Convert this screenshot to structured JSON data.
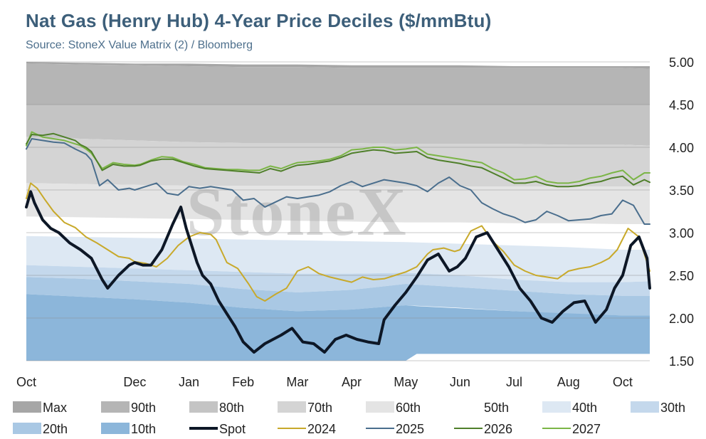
{
  "title": "Nat Gas (Henry Hub) 4-Year Price Deciles ($/mmBtu)",
  "subtitle": "Source: StoneX Value Matrix (2) / Bloomberg",
  "watermark": "StoneX",
  "chart_data": {
    "type": "area",
    "y_ticks": [
      "5.00",
      "4.50",
      "4.00",
      "3.50",
      "3.00",
      "2.50",
      "2.00",
      "1.50"
    ],
    "ylim": [
      1.5,
      5.0
    ],
    "y_axis_position": "right",
    "grid": true,
    "x_tick_labels": [
      "Oct",
      "Dec",
      "Jan",
      "Feb",
      "Mar",
      "Apr",
      "May",
      "Jun",
      "Jul",
      "Aug",
      "Oct"
    ],
    "x_tick_positions": [
      0,
      2,
      3,
      4,
      5,
      6,
      7,
      8,
      9,
      10,
      11
    ],
    "x_domain": [
      0,
      11.5
    ],
    "legend_position": "bottom",
    "legend": [
      "Max",
      "90th",
      "80th",
      "70th",
      "60th",
      "50th",
      "40th",
      "30th",
      "20th",
      "10th",
      "Spot",
      "2024",
      "2025",
      "2026",
      "2027"
    ],
    "colors": {
      "Max": "#a6a6a6",
      "90th": "#b5b5b5",
      "80th": "#c4c4c4",
      "70th": "#d4d4d4",
      "60th": "#e4e4e4",
      "50th": "#ffffff",
      "40th": "#dde8f3",
      "30th": "#c4d8ec",
      "20th": "#a9c8e4",
      "10th": "#8cb6da",
      "Spot": "#0d1726",
      "2024": "#c8a92a",
      "2025": "#4a6e8d",
      "2026": "#4f7f2a",
      "2027": "#7bb546"
    },
    "bands": [
      {
        "name": "Max",
        "x": [
          0,
          1,
          2,
          3,
          4,
          5,
          6,
          7,
          8,
          9,
          10,
          11,
          11.5
        ],
        "upper": [
          5.0,
          4.99,
          4.98,
          4.98,
          4.97,
          4.97,
          4.96,
          4.96,
          4.96,
          4.95,
          4.95,
          4.95,
          4.95
        ],
        "lower": [
          4.98,
          4.97,
          4.96,
          4.95,
          4.94,
          4.94,
          4.93,
          4.93,
          4.93,
          4.93,
          4.93,
          4.93,
          4.92
        ]
      },
      {
        "name": "90th",
        "x": [
          0,
          1,
          2,
          3,
          4,
          5,
          6,
          7,
          8,
          9,
          10,
          11,
          11.5
        ],
        "upper": [
          4.98,
          4.97,
          4.96,
          4.95,
          4.94,
          4.94,
          4.93,
          4.93,
          4.93,
          4.93,
          4.93,
          4.93,
          4.92
        ],
        "lower": [
          4.5,
          4.5,
          4.5,
          4.5,
          4.5,
          4.5,
          4.5,
          4.5,
          4.5,
          4.5,
          4.5,
          4.5,
          4.5
        ]
      },
      {
        "name": "80th",
        "x": [
          0,
          1,
          2,
          3,
          4,
          5,
          6,
          7,
          8,
          9,
          10,
          11,
          11.5
        ],
        "upper": [
          4.5,
          4.5,
          4.5,
          4.5,
          4.5,
          4.5,
          4.5,
          4.5,
          4.5,
          4.5,
          4.5,
          4.5,
          4.5
        ],
        "lower": [
          4.12,
          4.1,
          4.08,
          4.06,
          4.05,
          4.05,
          4.05,
          4.04,
          4.04,
          4.04,
          4.03,
          4.03,
          4.02
        ]
      },
      {
        "name": "70th",
        "x": [
          0,
          1,
          2,
          3,
          4,
          5,
          6,
          7,
          8,
          9,
          10,
          11,
          11.5
        ],
        "upper": [
          4.12,
          4.1,
          4.08,
          4.06,
          4.05,
          4.05,
          4.05,
          4.04,
          4.04,
          4.04,
          4.03,
          4.03,
          4.02
        ],
        "lower": [
          3.58,
          3.57,
          3.56,
          3.55,
          3.55,
          3.55,
          3.55,
          3.54,
          3.54,
          3.54,
          3.54,
          3.54,
          3.54
        ]
      },
      {
        "name": "60th",
        "x": [
          0,
          1,
          2,
          3,
          4,
          5,
          6,
          7,
          8,
          9,
          10,
          11,
          11.5
        ],
        "upper": [
          3.58,
          3.57,
          3.56,
          3.55,
          3.55,
          3.55,
          3.55,
          3.54,
          3.54,
          3.54,
          3.54,
          3.54,
          3.54
        ],
        "lower": [
          3.19,
          3.18,
          3.17,
          3.16,
          3.15,
          3.14,
          3.13,
          3.12,
          3.12,
          3.11,
          3.11,
          3.1,
          3.1
        ]
      },
      {
        "name": "40th",
        "x": [
          0,
          1,
          2,
          3,
          4,
          5,
          6,
          7,
          8,
          9,
          10,
          11,
          11.5
        ],
        "upper": [
          2.96,
          2.95,
          2.94,
          2.93,
          2.92,
          2.91,
          2.9,
          2.89,
          2.87,
          2.85,
          2.83,
          2.8,
          2.8
        ],
        "lower": [
          2.62,
          2.6,
          2.58,
          2.56,
          2.54,
          2.52,
          2.52,
          2.53,
          2.5,
          2.45,
          2.42,
          2.42,
          2.43
        ]
      },
      {
        "name": "30th",
        "x": [
          0,
          1,
          2,
          3,
          4,
          5,
          6,
          7,
          8,
          9,
          10,
          11,
          11.5
        ],
        "upper": [
          2.62,
          2.6,
          2.58,
          2.56,
          2.54,
          2.52,
          2.52,
          2.53,
          2.5,
          2.45,
          2.42,
          2.42,
          2.43
        ],
        "lower": [
          2.48,
          2.46,
          2.43,
          2.4,
          2.34,
          2.3,
          2.33,
          2.4,
          2.36,
          2.32,
          2.28,
          2.26,
          2.26
        ]
      },
      {
        "name": "20th",
        "x": [
          0,
          1,
          2,
          3,
          4,
          5,
          6,
          7,
          8,
          9,
          10,
          11,
          11.5
        ],
        "upper": [
          2.48,
          2.46,
          2.43,
          2.4,
          2.34,
          2.3,
          2.33,
          2.4,
          2.36,
          2.32,
          2.28,
          2.26,
          2.26
        ],
        "lower": [
          2.28,
          2.25,
          2.22,
          2.18,
          2.12,
          2.08,
          2.1,
          2.15,
          2.12,
          2.08,
          2.05,
          2.03,
          2.03
        ]
      },
      {
        "name": "10th",
        "x": [
          0,
          1,
          2,
          3,
          4,
          5,
          6,
          7,
          7.2,
          9,
          11,
          11.5
        ],
        "upper": [
          2.28,
          2.25,
          2.22,
          2.18,
          2.12,
          2.08,
          2.1,
          2.15,
          2.14,
          2.08,
          2.03,
          2.03
        ],
        "lower": [
          1.5,
          1.5,
          1.5,
          1.5,
          1.5,
          1.5,
          1.5,
          1.5,
          1.58,
          1.58,
          1.58,
          1.58
        ]
      }
    ],
    "series": [
      {
        "name": "2027",
        "x": [
          0,
          0.1,
          0.3,
          0.5,
          0.7,
          0.9,
          1.0,
          1.1,
          1.2,
          1.4,
          1.6,
          1.8,
          2.0,
          2.1,
          2.3,
          2.5,
          2.7,
          2.9,
          3.1,
          3.3,
          3.5,
          3.7,
          3.9,
          4.1,
          4.3,
          4.5,
          4.7,
          4.9,
          5.0,
          5.2,
          5.4,
          5.6,
          5.8,
          6.0,
          6.2,
          6.4,
          6.6,
          6.8,
          7.0,
          7.2,
          7.4,
          7.6,
          7.8,
          8.0,
          8.2,
          8.4,
          8.6,
          8.8,
          9.0,
          9.2,
          9.4,
          9.6,
          9.8,
          10.0,
          10.2,
          10.4,
          10.6,
          10.8,
          11.0,
          11.2,
          11.4,
          11.5
        ],
        "values": [
          4.02,
          4.18,
          4.12,
          4.1,
          4.08,
          4.04,
          4.02,
          3.98,
          3.93,
          3.75,
          3.82,
          3.8,
          3.79,
          3.8,
          3.85,
          3.89,
          3.88,
          3.83,
          3.8,
          3.76,
          3.75,
          3.74,
          3.74,
          3.73,
          3.73,
          3.78,
          3.75,
          3.8,
          3.82,
          3.83,
          3.84,
          3.86,
          3.9,
          3.97,
          3.98,
          4.0,
          4.0,
          3.97,
          3.98,
          4.0,
          3.92,
          3.9,
          3.88,
          3.86,
          3.84,
          3.82,
          3.75,
          3.7,
          3.62,
          3.63,
          3.66,
          3.6,
          3.58,
          3.58,
          3.6,
          3.64,
          3.66,
          3.7,
          3.73,
          3.62,
          3.7,
          3.7
        ]
      },
      {
        "name": "2026",
        "x": [
          0,
          0.1,
          0.3,
          0.5,
          0.7,
          0.9,
          1.0,
          1.1,
          1.2,
          1.4,
          1.6,
          1.8,
          2.0,
          2.1,
          2.3,
          2.5,
          2.7,
          2.9,
          3.1,
          3.3,
          3.5,
          3.7,
          3.9,
          4.1,
          4.3,
          4.5,
          4.7,
          4.9,
          5.0,
          5.2,
          5.4,
          5.6,
          5.8,
          6.0,
          6.2,
          6.4,
          6.6,
          6.8,
          7.0,
          7.2,
          7.4,
          7.6,
          7.8,
          8.0,
          8.2,
          8.4,
          8.6,
          8.8,
          9.0,
          9.2,
          9.4,
          9.6,
          9.8,
          10.0,
          10.2,
          10.4,
          10.6,
          10.8,
          11.0,
          11.2,
          11.4,
          11.5
        ],
        "values": [
          4.04,
          4.15,
          4.14,
          4.16,
          4.12,
          4.08,
          4.03,
          4.0,
          3.95,
          3.73,
          3.8,
          3.78,
          3.78,
          3.79,
          3.84,
          3.86,
          3.86,
          3.82,
          3.78,
          3.75,
          3.74,
          3.73,
          3.72,
          3.71,
          3.7,
          3.75,
          3.72,
          3.77,
          3.79,
          3.8,
          3.82,
          3.84,
          3.88,
          3.93,
          3.95,
          3.97,
          3.96,
          3.93,
          3.94,
          3.95,
          3.88,
          3.85,
          3.83,
          3.81,
          3.78,
          3.76,
          3.7,
          3.64,
          3.58,
          3.58,
          3.6,
          3.56,
          3.54,
          3.54,
          3.55,
          3.58,
          3.6,
          3.64,
          3.66,
          3.56,
          3.62,
          3.59
        ]
      },
      {
        "name": "2025",
        "x": [
          0,
          0.1,
          0.3,
          0.5,
          0.7,
          0.9,
          1.0,
          1.1,
          1.2,
          1.35,
          1.5,
          1.7,
          1.9,
          2.0,
          2.2,
          2.4,
          2.6,
          2.8,
          3.0,
          3.2,
          3.4,
          3.6,
          3.8,
          4.0,
          4.2,
          4.4,
          4.6,
          4.8,
          5.0,
          5.2,
          5.4,
          5.6,
          5.8,
          6.0,
          6.2,
          6.4,
          6.6,
          6.8,
          7.0,
          7.2,
          7.4,
          7.6,
          7.8,
          8.0,
          8.2,
          8.4,
          8.6,
          8.8,
          9.0,
          9.2,
          9.4,
          9.6,
          9.8,
          10.0,
          10.2,
          10.4,
          10.6,
          10.8,
          11.0,
          11.2,
          11.4,
          11.5
        ],
        "values": [
          3.98,
          4.1,
          4.08,
          4.06,
          4.05,
          3.98,
          3.95,
          3.92,
          3.85,
          3.55,
          3.62,
          3.5,
          3.52,
          3.5,
          3.54,
          3.58,
          3.46,
          3.44,
          3.54,
          3.52,
          3.54,
          3.52,
          3.5,
          3.38,
          3.4,
          3.3,
          3.36,
          3.42,
          3.4,
          3.42,
          3.44,
          3.48,
          3.55,
          3.6,
          3.54,
          3.58,
          3.62,
          3.6,
          3.58,
          3.55,
          3.48,
          3.58,
          3.65,
          3.55,
          3.5,
          3.35,
          3.28,
          3.22,
          3.18,
          3.12,
          3.15,
          3.25,
          3.2,
          3.14,
          3.15,
          3.16,
          3.2,
          3.22,
          3.38,
          3.32,
          3.1,
          3.1
        ]
      },
      {
        "name": "2024",
        "x": [
          0,
          0.08,
          0.2,
          0.35,
          0.5,
          0.7,
          0.9,
          1.1,
          1.3,
          1.5,
          1.7,
          1.9,
          2.0,
          2.2,
          2.4,
          2.6,
          2.8,
          3.0,
          3.2,
          3.4,
          3.5,
          3.7,
          3.9,
          4.1,
          4.25,
          4.4,
          4.6,
          4.8,
          5.0,
          5.2,
          5.4,
          5.6,
          5.8,
          6.0,
          6.2,
          6.4,
          6.6,
          6.8,
          7.0,
          7.2,
          7.4,
          7.5,
          7.7,
          7.9,
          8.0,
          8.2,
          8.4,
          8.6,
          8.8,
          9.0,
          9.2,
          9.4,
          9.6,
          9.8,
          10.0,
          10.2,
          10.4,
          10.6,
          10.75,
          10.9,
          11.1,
          11.3,
          11.5
        ],
        "values": [
          3.4,
          3.58,
          3.52,
          3.38,
          3.25,
          3.12,
          3.06,
          2.95,
          2.88,
          2.8,
          2.72,
          2.7,
          2.66,
          2.64,
          2.6,
          2.7,
          2.85,
          2.95,
          3.0,
          2.98,
          2.92,
          2.65,
          2.58,
          2.4,
          2.25,
          2.2,
          2.28,
          2.35,
          2.55,
          2.6,
          2.52,
          2.48,
          2.45,
          2.42,
          2.48,
          2.45,
          2.46,
          2.5,
          2.54,
          2.6,
          2.75,
          2.8,
          2.82,
          2.78,
          2.8,
          3.02,
          3.08,
          2.9,
          2.78,
          2.62,
          2.55,
          2.5,
          2.48,
          2.46,
          2.55,
          2.58,
          2.6,
          2.65,
          2.7,
          2.8,
          3.05,
          2.95,
          2.55
        ]
      },
      {
        "name": "Spot",
        "x": [
          0,
          0.08,
          0.15,
          0.3,
          0.45,
          0.6,
          0.8,
          1.0,
          1.2,
          1.4,
          1.5,
          1.7,
          1.9,
          2.0,
          2.15,
          2.3,
          2.5,
          2.7,
          2.85,
          2.95,
          3.05,
          3.15,
          3.25,
          3.4,
          3.55,
          3.7,
          3.85,
          4.0,
          4.2,
          4.4,
          4.55,
          4.7,
          4.9,
          5.1,
          5.3,
          5.5,
          5.7,
          5.9,
          6.1,
          6.3,
          6.5,
          6.6,
          6.8,
          7.0,
          7.2,
          7.4,
          7.6,
          7.8,
          7.95,
          8.1,
          8.3,
          8.5,
          8.7,
          8.9,
          9.1,
          9.3,
          9.5,
          9.7,
          9.9,
          10.1,
          10.3,
          10.5,
          10.7,
          10.85,
          11.0,
          11.15,
          11.3,
          11.45,
          11.5
        ],
        "values": [
          3.3,
          3.48,
          3.35,
          3.15,
          3.05,
          3.0,
          2.88,
          2.8,
          2.7,
          2.45,
          2.35,
          2.5,
          2.62,
          2.65,
          2.62,
          2.62,
          2.8,
          3.1,
          3.3,
          3.05,
          2.85,
          2.65,
          2.5,
          2.4,
          2.2,
          2.05,
          1.9,
          1.72,
          1.6,
          1.7,
          1.75,
          1.8,
          1.88,
          1.72,
          1.7,
          1.6,
          1.75,
          1.8,
          1.75,
          1.72,
          1.7,
          1.98,
          2.15,
          2.3,
          2.48,
          2.68,
          2.75,
          2.55,
          2.6,
          2.7,
          2.95,
          3.0,
          2.8,
          2.6,
          2.35,
          2.2,
          2.0,
          1.95,
          2.08,
          2.18,
          2.2,
          1.95,
          2.1,
          2.35,
          2.5,
          2.85,
          2.95,
          2.7,
          2.35
        ]
      }
    ]
  }
}
